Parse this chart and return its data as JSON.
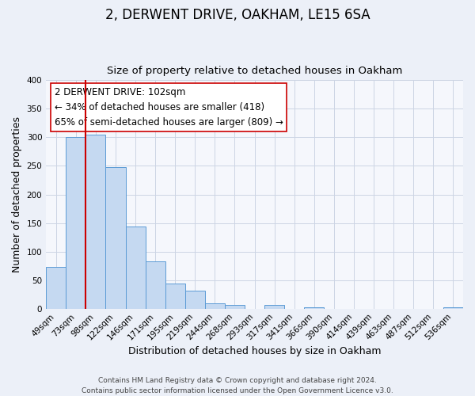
{
  "title": "2, DERWENT DRIVE, OAKHAM, LE15 6SA",
  "subtitle": "Size of property relative to detached houses in Oakham",
  "xlabel": "Distribution of detached houses by size in Oakham",
  "ylabel": "Number of detached properties",
  "bar_labels": [
    "49sqm",
    "73sqm",
    "98sqm",
    "122sqm",
    "146sqm",
    "171sqm",
    "195sqm",
    "219sqm",
    "244sqm",
    "268sqm",
    "293sqm",
    "317sqm",
    "341sqm",
    "366sqm",
    "390sqm",
    "414sqm",
    "439sqm",
    "463sqm",
    "487sqm",
    "512sqm",
    "536sqm"
  ],
  "bar_values": [
    73,
    300,
    305,
    248,
    144,
    83,
    44,
    32,
    10,
    7,
    0,
    7,
    0,
    2,
    0,
    0,
    0,
    0,
    0,
    0,
    2
  ],
  "bar_color": "#c5d9f1",
  "bar_edge_color": "#5b9bd5",
  "vline_index": 2,
  "vline_color": "#cc0000",
  "annotation_title": "2 DERWENT DRIVE: 102sqm",
  "annotation_line1": "← 34% of detached houses are smaller (418)",
  "annotation_line2": "65% of semi-detached houses are larger (809) →",
  "ylim": [
    0,
    400
  ],
  "yticks": [
    0,
    50,
    100,
    150,
    200,
    250,
    300,
    350,
    400
  ],
  "footer_line1": "Contains HM Land Registry data © Crown copyright and database right 2024.",
  "footer_line2": "Contains public sector information licensed under the Open Government Licence v3.0.",
  "bg_color": "#ecf0f8",
  "plot_bg_color": "#f5f7fc",
  "grid_color": "#ccd4e4",
  "title_fontsize": 12,
  "subtitle_fontsize": 9.5,
  "axis_label_fontsize": 9,
  "tick_fontsize": 7.5,
  "annotation_fontsize": 8.5,
  "footer_fontsize": 6.5
}
